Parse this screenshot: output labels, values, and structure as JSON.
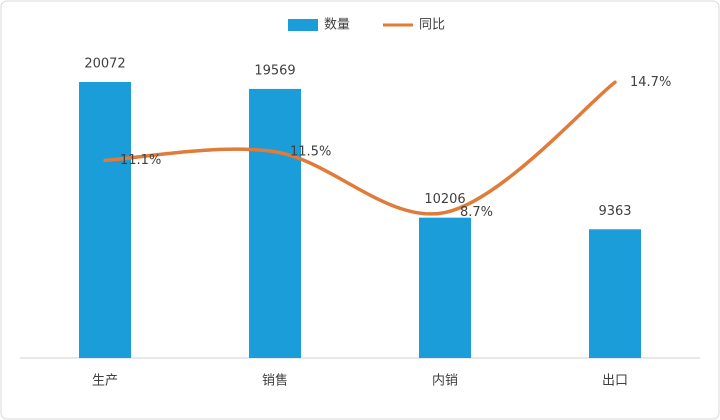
{
  "chart_data": {
    "type": "bar",
    "categories": [
      "生产",
      "销售",
      "内销",
      "出口"
    ],
    "series": [
      {
        "name": "数量",
        "type": "bar",
        "color": "#1a9dd9",
        "values": [
          20072,
          19569,
          10206,
          9363
        ]
      },
      {
        "name": "同比",
        "type": "line",
        "axis": "y2",
        "color": "#e07b39",
        "values": [
          11.1,
          11.5,
          8.7,
          14.7
        ],
        "value_labels": [
          "11.1%",
          "11.5%",
          "8.7%",
          "14.7%"
        ]
      }
    ],
    "ylim": [
      0,
      24000
    ],
    "y2lim": [
      2,
      17.2
    ],
    "grid": false,
    "legend": "top"
  }
}
